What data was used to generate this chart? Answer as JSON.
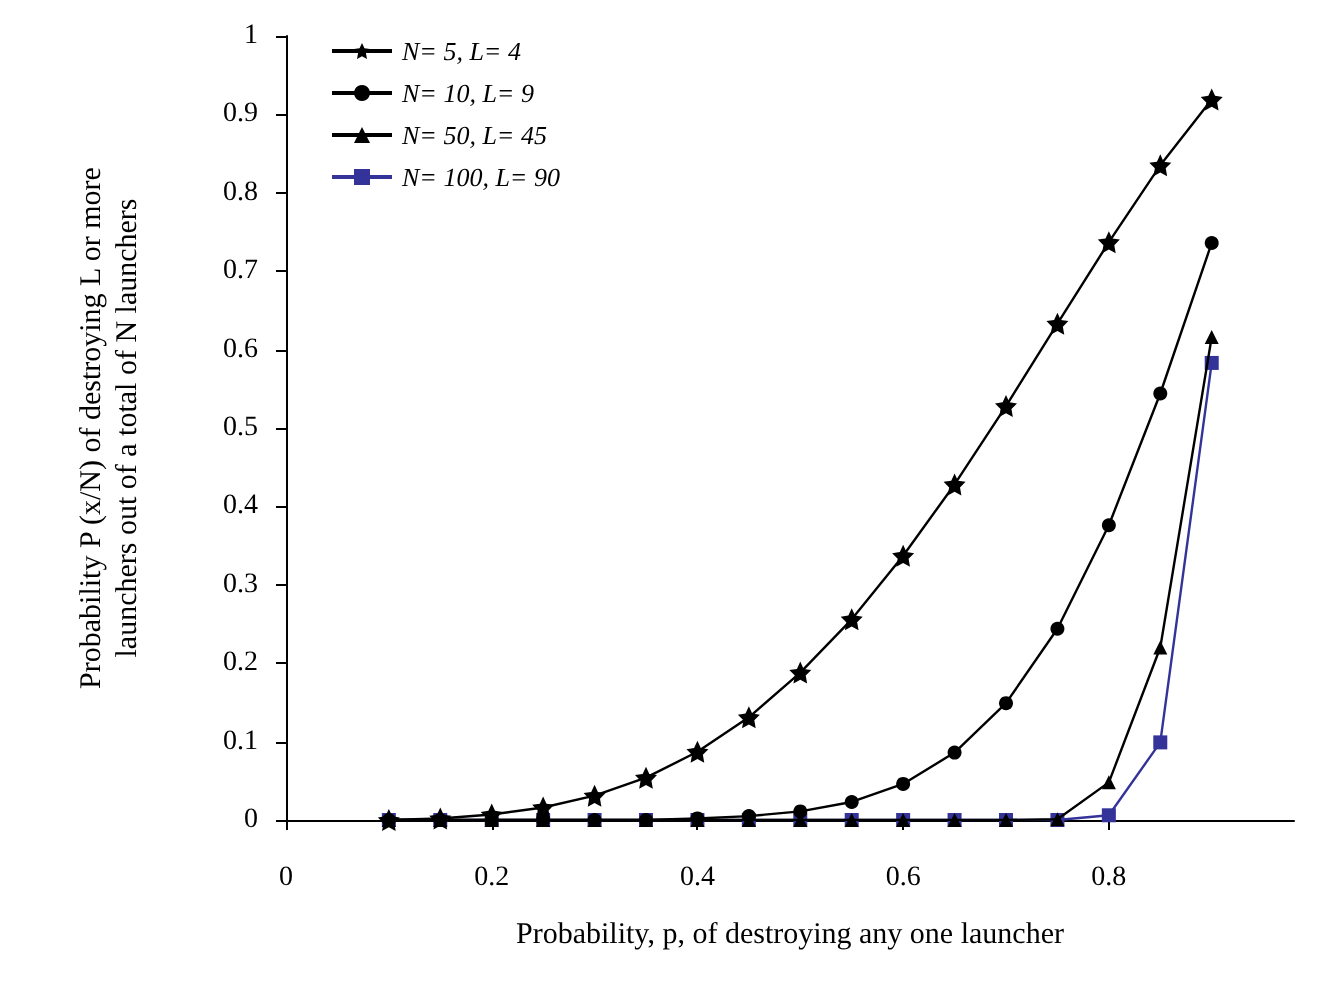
{
  "chart_data": {
    "type": "line",
    "xlabel": "Probability, p, of destroying any one launcher",
    "ylabel": "Probability P (x/N) of destroying L or more\nlaunchers out of a total of N launchers",
    "x": [
      0.1,
      0.15,
      0.2,
      0.25,
      0.3,
      0.35,
      0.4,
      0.45,
      0.5,
      0.55,
      0.6,
      0.65,
      0.7,
      0.75,
      0.8,
      0.85,
      0.9
    ],
    "series": [
      {
        "name": "N= 5, L= 4",
        "color": "#000000",
        "marker": "star",
        "values": [
          0,
          0.002,
          0.007,
          0.016,
          0.031,
          0.054,
          0.087,
          0.131,
          0.188,
          0.256,
          0.337,
          0.428,
          0.528,
          0.633,
          0.737,
          0.835,
          0.919
        ]
      },
      {
        "name": "N= 10, L= 9",
        "color": "#000000",
        "marker": "circle",
        "values": [
          0,
          0,
          0,
          0,
          0,
          0,
          0.002,
          0.005,
          0.011,
          0.023,
          0.046,
          0.086,
          0.149,
          0.244,
          0.376,
          0.544,
          0.736
        ]
      },
      {
        "name": "N= 50, L= 45",
        "color": "#000000",
        "marker": "triangle",
        "values": [
          0,
          0,
          0,
          0,
          0,
          0,
          0,
          0,
          0,
          0,
          0,
          0,
          0,
          0.001,
          0.048,
          0.22,
          0.616
        ]
      },
      {
        "name": "N= 100, L= 90",
        "color": "#333399",
        "marker": "square",
        "values": [
          0,
          0,
          0,
          0,
          0,
          0,
          0,
          0,
          0,
          0,
          0,
          0,
          0,
          0,
          0.006,
          0.099,
          0.583
        ]
      }
    ],
    "xlim": [
      0,
      0.98
    ],
    "xticks": [
      0,
      0.2,
      0.4,
      0.6,
      0.8
    ],
    "ylim": [
      0,
      1
    ],
    "yticks": [
      0,
      0.1,
      0.2,
      0.3,
      0.4,
      0.5,
      0.6,
      0.7,
      0.8,
      0.9,
      1
    ],
    "grid": false,
    "legend": "top left",
    "line_style": "solid"
  }
}
